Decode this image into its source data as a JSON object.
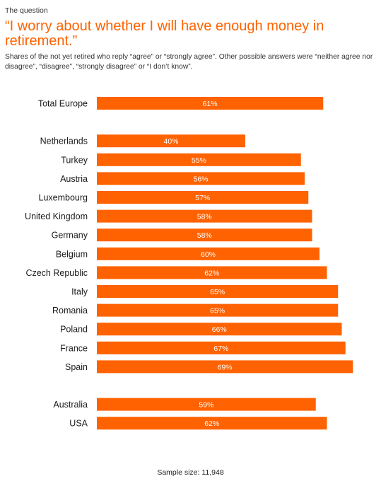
{
  "header": {
    "kicker": "The question",
    "title": "“I worry about whether I will have enough money in retirement.”",
    "subtitle": "Shares of the not yet retired who reply “agree” or “strongly agree”. Other possible answers were “neither agree nor disagree”, “disagree”, “strongly disagree” or “I don’t know”."
  },
  "footer": {
    "sample_size": "Sample size: 11,948"
  },
  "chart_data": {
    "type": "bar",
    "orientation": "horizontal",
    "color": "#ff6200",
    "value_label_color": "#ffffff",
    "value_format": "{v}%",
    "groups": [
      {
        "items": [
          {
            "label": "Total Europe",
            "value": 61
          }
        ]
      },
      {
        "items": [
          {
            "label": "Netherlands",
            "value": 40
          },
          {
            "label": "Turkey",
            "value": 55
          },
          {
            "label": "Austria",
            "value": 56
          },
          {
            "label": "Luxembourg",
            "value": 57
          },
          {
            "label": "United Kingdom",
            "value": 58
          },
          {
            "label": "Germany",
            "value": 58
          },
          {
            "label": "Belgium",
            "value": 60
          },
          {
            "label": "Czech Republic",
            "value": 62
          },
          {
            "label": "Italy",
            "value": 65
          },
          {
            "label": "Romania",
            "value": 65
          },
          {
            "label": "Poland",
            "value": 66
          },
          {
            "label": "France",
            "value": 67
          },
          {
            "label": "Spain",
            "value": 69
          }
        ]
      },
      {
        "items": [
          {
            "label": "Australia",
            "value": 59
          },
          {
            "label": "USA",
            "value": 62
          }
        ]
      }
    ]
  }
}
